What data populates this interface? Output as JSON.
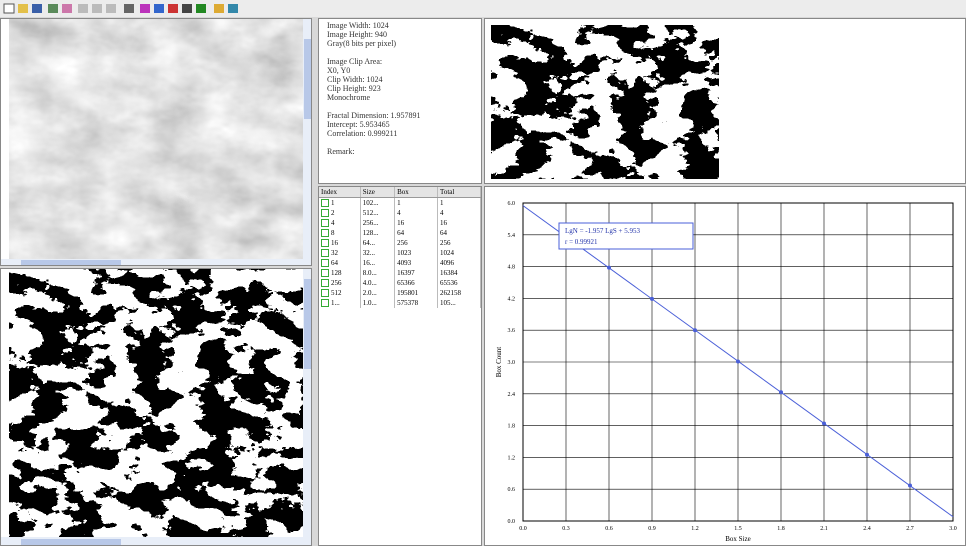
{
  "info": {
    "lines": [
      "Image Width: 1024",
      "Image Height: 940",
      "Gray(8 bits per pixel)",
      "Image Clip Area:",
      "X0, Y0",
      "Clip Width: 1024",
      "Clip Height: 923",
      "Monochrome",
      "Fractal Dimension: 1.957891",
      "Intercept: 5.953465",
      "Correlation: 0.999211",
      "Remark:"
    ]
  },
  "table": {
    "columns": [
      "Index",
      "Size",
      "Box",
      "Total"
    ],
    "rows": [
      [
        "1",
        "102...",
        "1",
        "1"
      ],
      [
        "2",
        "512...",
        "4",
        "4"
      ],
      [
        "4",
        "256...",
        "16",
        "16"
      ],
      [
        "8",
        "128...",
        "64",
        "64"
      ],
      [
        "16",
        "64...",
        "256",
        "256"
      ],
      [
        "32",
        "32...",
        "1023",
        "1024"
      ],
      [
        "64",
        "16...",
        "4093",
        "4096"
      ],
      [
        "128",
        "8.0...",
        "16397",
        "16384"
      ],
      [
        "256",
        "4.0...",
        "65366",
        "65536"
      ],
      [
        "512",
        "2.0...",
        "195801",
        "262158"
      ],
      [
        "1...",
        "1.0...",
        "575378",
        "105..."
      ]
    ]
  },
  "chart": {
    "type": "line",
    "x_label": "Box Size",
    "y_label": "Box Count",
    "legend": [
      "LgN = -1.957 LgS + 5.953",
      "r = 0.99921"
    ],
    "x": [
      0.6,
      0.9,
      1.2,
      1.5,
      1.8,
      2.1,
      2.4,
      2.7
    ],
    "values": [
      4.78,
      4.19,
      3.6,
      3.01,
      2.43,
      1.84,
      1.25,
      0.67
    ],
    "fit": {
      "x": [
        0,
        3
      ],
      "values": [
        5.95,
        0.08
      ]
    },
    "color": "#4a5fd8",
    "xlim": [
      0,
      3
    ],
    "ylim": [
      0,
      6
    ],
    "xticks": [
      {
        "value": 0,
        "label": "0.0"
      },
      0.3,
      0.6,
      0.9,
      1.2,
      1.5,
      1.8,
      2.1,
      2.4,
      2.7,
      {
        "value": 3,
        "label": "3.0"
      }
    ],
    "yticks": [
      {
        "value": 0,
        "label": "0.0"
      },
      0.6,
      1.2,
      1.8,
      2.4,
      {
        "value": 3,
        "label": "3.0"
      },
      3.6,
      4.2,
      4.8,
      5.4,
      {
        "value": 6,
        "label": "6.0"
      }
    ],
    "grid": true
  }
}
